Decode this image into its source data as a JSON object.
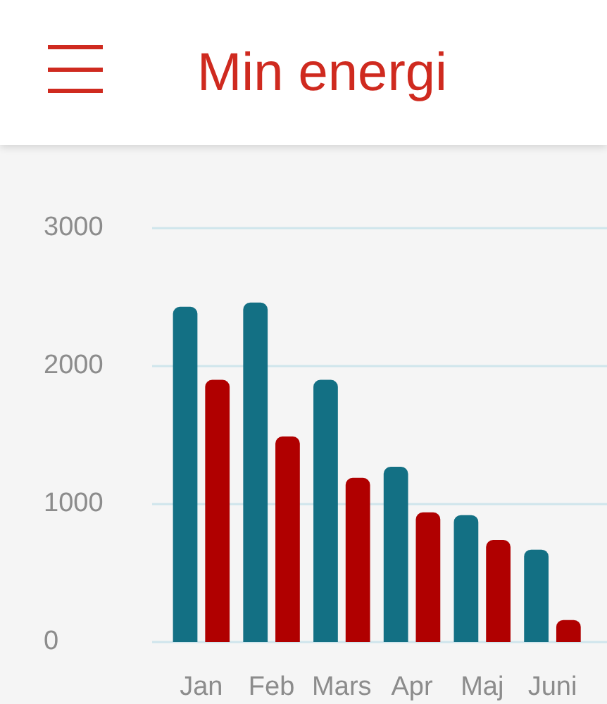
{
  "chart_data": {
    "type": "bar",
    "title": "Min energi",
    "categories": [
      "Jan",
      "Feb",
      "Mars",
      "Apr",
      "Maj",
      "Juni"
    ],
    "series": [
      {
        "color": "#137084",
        "values": [
          2430,
          2460,
          1900,
          1270,
          920,
          670
        ]
      },
      {
        "color": "#b00000",
        "values": [
          1900,
          1490,
          1190,
          940,
          740,
          160
        ]
      }
    ],
    "ylim": [
      0,
      3000
    ],
    "yticks": [
      0,
      1000,
      2000,
      3000
    ],
    "grid": "y"
  }
}
